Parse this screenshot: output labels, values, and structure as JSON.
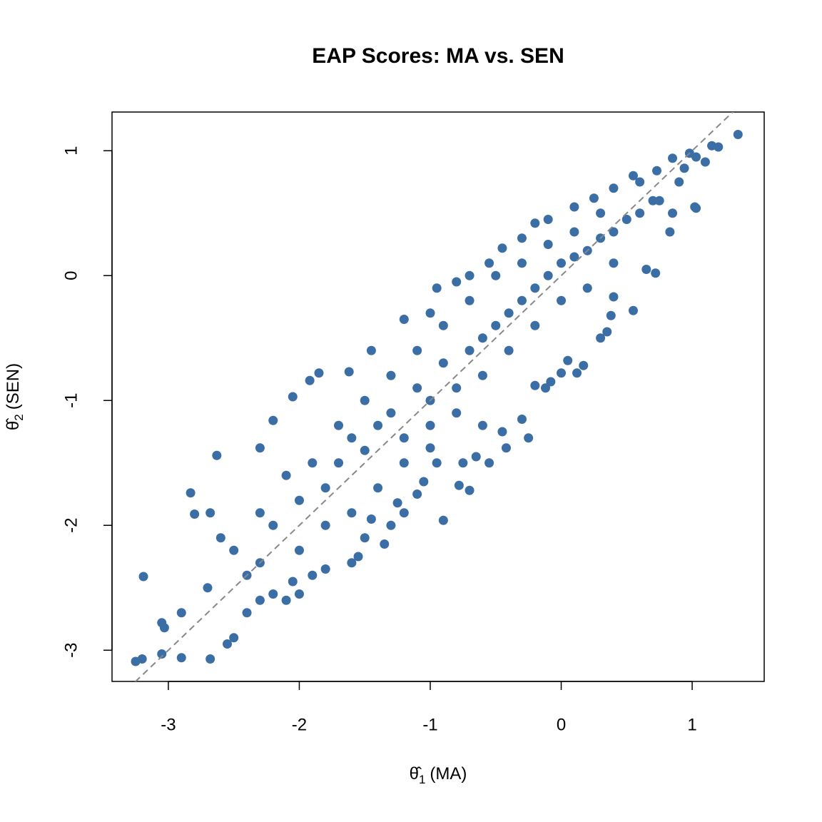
{
  "chart_data": {
    "type": "scatter",
    "title": "EAP Scores: MA vs. SEN",
    "xlabel": {
      "symbol": "θ̂",
      "sub": "1",
      "text": "(MA)"
    },
    "ylabel": {
      "symbol": "θ̂",
      "sub": "2",
      "text": "(SEN)"
    },
    "xlim": [
      -3.43,
      1.55
    ],
    "ylim": [
      -3.25,
      1.31
    ],
    "xticks": [
      -3,
      -2,
      -1,
      0,
      1
    ],
    "yticks": [
      -3,
      -2,
      -1,
      0,
      1
    ],
    "reference_line": {
      "slope": 1,
      "intercept": 0,
      "color": "#888888"
    },
    "series": [
      {
        "color": "#3a6ea5",
        "x": [
          1.35,
          1.2,
          1.15,
          1.1,
          1.03,
          0.98,
          1.02,
          1.03,
          0.94,
          0.85,
          0.73,
          0.9,
          0.75,
          0.85,
          0.83,
          0.72,
          0.65,
          0.55,
          0.4,
          0.38,
          0.35,
          0.3,
          0.17,
          0.12,
          0.05,
          0.0,
          -0.08,
          -0.12,
          -0.2,
          -0.3,
          -0.25,
          -0.45,
          -0.42,
          -0.6,
          -0.55,
          -0.65,
          -0.75,
          -0.7,
          -0.78,
          -0.9,
          -0.95,
          -1.0,
          -1.05,
          -1.1,
          -1.2,
          -1.25,
          -1.3,
          -1.35,
          -1.45,
          -1.5,
          -1.55,
          -1.6,
          -1.8,
          -1.9,
          -2.0,
          -2.05,
          -2.1,
          -2.2,
          -2.3,
          -2.4,
          -2.5,
          -2.55,
          -2.68,
          -2.9,
          -3.05,
          -3.2,
          -3.25,
          -3.19,
          -3.05,
          -3.03,
          -2.83,
          -2.8,
          -2.68,
          -2.6,
          -2.63,
          -2.3,
          -2.2,
          -2.05,
          -1.92,
          -1.85,
          -1.62,
          -1.45,
          -1.2,
          -1.0,
          -0.95,
          -0.8,
          -0.7,
          -0.55,
          -0.45,
          -0.3,
          -0.2,
          -0.1,
          0.1,
          0.25,
          0.4,
          0.55,
          0.6,
          -2.5,
          -2.2,
          -2.0,
          -1.8,
          -1.7,
          -1.6,
          -1.5,
          -1.4,
          -1.3,
          -1.2,
          -1.1,
          -1.0,
          -0.9,
          -0.8,
          -0.7,
          -0.6,
          -0.5,
          -0.4,
          -0.3,
          -0.2,
          -0.1,
          0,
          0.1,
          0.2,
          0.3,
          0.4,
          0.5,
          0.6,
          0.7,
          0,
          -0.2,
          -0.4,
          -0.6,
          -0.8,
          -1.0,
          -1.2,
          -1.4,
          -1.6,
          -1.8,
          -2.0,
          -2.3,
          -1.9,
          -1.7,
          -1.5,
          -1.3,
          -1.1,
          -0.9,
          -0.7,
          -0.5,
          -0.3,
          -0.1,
          0.1,
          0.3,
          0.2,
          0.4,
          -2.7,
          -2.9,
          -2.4,
          -2.1,
          -2.3
        ],
        "y": [
          1.13,
          1.03,
          1.04,
          0.91,
          0.95,
          0.98,
          0.55,
          0.54,
          0.86,
          0.94,
          0.84,
          0.75,
          0.6,
          0.5,
          0.35,
          0.02,
          0.05,
          -0.28,
          -0.17,
          -0.32,
          -0.45,
          -0.5,
          -0.72,
          -0.78,
          -0.68,
          -0.78,
          -0.85,
          -0.9,
          -0.88,
          -1.15,
          -1.3,
          -1.25,
          -1.38,
          -1.2,
          -1.5,
          -1.45,
          -1.5,
          -1.72,
          -1.68,
          -1.96,
          -1.5,
          -1.38,
          -1.65,
          -1.75,
          -1.9,
          -1.82,
          -2.0,
          -2.15,
          -1.95,
          -2.1,
          -2.25,
          -2.3,
          -2.35,
          -2.4,
          -2.55,
          -2.45,
          -2.6,
          -2.55,
          -2.6,
          -2.7,
          -2.9,
          -2.95,
          -3.07,
          -3.06,
          -3.03,
          -3.07,
          -3.09,
          -2.41,
          -2.78,
          -2.82,
          -1.74,
          -1.91,
          -1.9,
          -2.1,
          -1.44,
          -1.38,
          -1.16,
          -0.97,
          -0.84,
          -0.78,
          -0.77,
          -0.6,
          -0.35,
          -0.3,
          -0.1,
          -0.05,
          0.0,
          0.1,
          0.22,
          0.3,
          0.42,
          0.45,
          0.55,
          0.62,
          0.7,
          0.8,
          0.75,
          -2.2,
          -2.0,
          -1.8,
          -1.7,
          -1.5,
          -1.3,
          -1.4,
          -1.2,
          -1.1,
          -1.3,
          -0.9,
          -1.0,
          -0.7,
          -0.9,
          -0.6,
          -0.5,
          -0.4,
          -0.3,
          -0.2,
          -0.1,
          0.0,
          0.1,
          0.15,
          0.2,
          0.3,
          0.35,
          0.45,
          0.5,
          0.6,
          -0.2,
          -0.4,
          -0.6,
          -0.8,
          -1.1,
          -1.2,
          -1.5,
          -1.7,
          -1.9,
          -2.0,
          -2.2,
          -2.3,
          -1.5,
          -1.2,
          -1.0,
          -0.8,
          -0.6,
          -0.4,
          -0.2,
          0.0,
          0.1,
          0.25,
          0.35,
          0.5,
          -0.1,
          0.1,
          -2.5,
          -2.7,
          -2.4,
          -1.6,
          -1.9
        ]
      }
    ]
  }
}
